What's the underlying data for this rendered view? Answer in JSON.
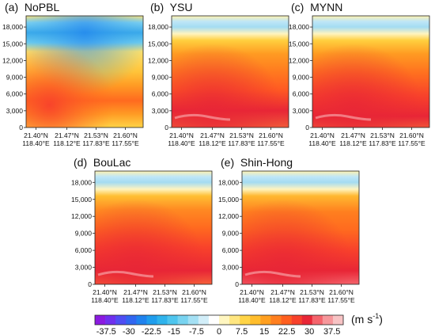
{
  "chart_data": {
    "type": "heatmap",
    "colorbar": {
      "ticks": [
        "-37.5",
        "-30",
        "-22.5",
        "-15",
        "-7.5",
        "0",
        "7.5",
        "15",
        "22.5",
        "30",
        "37.5"
      ],
      "values": [
        -37.5,
        -30,
        -22.5,
        -15,
        -7.5,
        0,
        7.5,
        15,
        22.5,
        30,
        37.5
      ],
      "range": [
        -41.25,
        41.25
      ],
      "unit_text": "(m s",
      "unit_exp": "-1",
      "unit_close": ")",
      "colors": [
        "#8b1ae0",
        "#6f30ee",
        "#4f4ef3",
        "#3166f0",
        "#1f82ee",
        "#1f9ded",
        "#2fb3ec",
        "#4ec5ee",
        "#78d3f0",
        "#a4e0f4",
        "#d2eef9",
        "#ffffff",
        "#fff6c0",
        "#ffe680",
        "#ffd447",
        "#ffbd2c",
        "#ff9f1f",
        "#ff7f1f",
        "#ff5f1f",
        "#f8412b",
        "#e82636",
        "#f4646c",
        "#f6979b",
        "#f7c3c4"
      ]
    },
    "panels": [
      {
        "label": "(a)  NoPBL",
        "yticks": [
          "18,000",
          "15,000",
          "12,000",
          "9,000",
          "6,000",
          "3,000",
          "0"
        ],
        "ytick_values": [
          18000,
          15000,
          12000,
          9000,
          6000,
          3000,
          0
        ],
        "ylim": [
          0,
          20000
        ],
        "xticks_lat": [
          "21.40°N",
          "21.47°N",
          "21.53°N",
          "21.60°N"
        ],
        "xticks_lon": [
          "118.40°E",
          "118.12°E",
          "117.83°E",
          "117.55°E"
        ]
      },
      {
        "label": "(b)  YSU",
        "yticks": [
          "18,000",
          "15,000",
          "12,000",
          "9,000",
          "6,000",
          "3,000",
          "0"
        ],
        "ytick_values": [
          18000,
          15000,
          12000,
          9000,
          6000,
          3000,
          0
        ],
        "ylim": [
          0,
          20000
        ],
        "xticks_lat": [
          "21.40°N",
          "21.47°N",
          "21.53°N",
          "21.60°N"
        ],
        "xticks_lon": [
          "118.40°E",
          "118.12°E",
          "117.83°E",
          "117.55°E"
        ]
      },
      {
        "label": "(c)  MYNN",
        "yticks": [
          "18,000",
          "15,000",
          "12,000",
          "9,000",
          "6,000",
          "3,000",
          "0"
        ],
        "ytick_values": [
          18000,
          15000,
          12000,
          9000,
          6000,
          3000,
          0
        ],
        "ylim": [
          0,
          20000
        ],
        "xticks_lat": [
          "21.40°N",
          "21.47°N",
          "21.53°N",
          "21.60°N"
        ],
        "xticks_lon": [
          "118.40°E",
          "118.12°E",
          "117.83°E",
          "117.55°E"
        ]
      },
      {
        "label": "(d)  BouLac",
        "yticks": [
          "18,000",
          "15,000",
          "12,000",
          "9,000",
          "6,000",
          "3,000",
          "0"
        ],
        "ytick_values": [
          18000,
          15000,
          12000,
          9000,
          6000,
          3000,
          0
        ],
        "ylim": [
          0,
          20000
        ],
        "xticks_lat": [
          "21.40°N",
          "21.47°N",
          "21.53°N",
          "21.60°N"
        ],
        "xticks_lon": [
          "118.40°E",
          "118.12°E",
          "117.83°E",
          "117.55°E"
        ]
      },
      {
        "label": "(e)  Shin-Hong",
        "yticks": [
          "18,000",
          "15,000",
          "12,000",
          "9,000",
          "6,000",
          "3,000",
          "0"
        ],
        "ytick_values": [
          18000,
          15000,
          12000,
          9000,
          6000,
          3000,
          0
        ],
        "ylim": [
          0,
          20000
        ],
        "xticks_lat": [
          "21.40°N",
          "21.47°N",
          "21.53°N",
          "21.60°N"
        ],
        "xticks_lon": [
          "118.40°E",
          "118.12°E",
          "117.83°E",
          "117.55°E"
        ]
      }
    ]
  }
}
